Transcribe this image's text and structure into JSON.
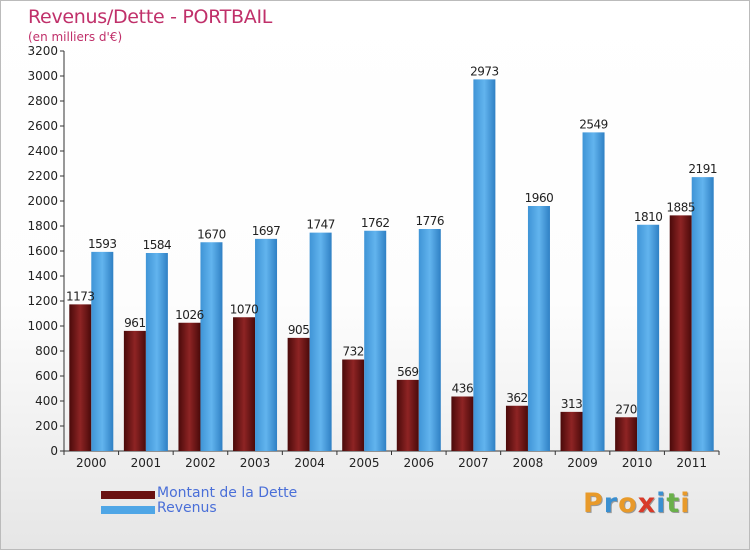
{
  "chart_data": {
    "type": "bar",
    "title": "Revenus/Dette - PORTBAIL",
    "subtitle": "(en milliers d'€)",
    "categories": [
      "2000",
      "2001",
      "2002",
      "2003",
      "2004",
      "2005",
      "2006",
      "2007",
      "2008",
      "2009",
      "2010",
      "2011"
    ],
    "series": [
      {
        "name": "Montant de la Dette",
        "color": "#7a1a1a",
        "values": [
          1173,
          961,
          1026,
          1070,
          905,
          732,
          569,
          436,
          362,
          313,
          270,
          1885
        ]
      },
      {
        "name": "Revenus",
        "color": "#4fa6e6",
        "values": [
          1593,
          1584,
          1670,
          1697,
          1747,
          1762,
          1776,
          2973,
          1960,
          2549,
          1810,
          2191
        ]
      }
    ],
    "data_labels": [
      [
        "1173",
        "961",
        "1026",
        "1070",
        "905",
        "732",
        "569",
        "436",
        "362",
        "313",
        "270",
        "1885"
      ],
      [
        "1593",
        "1584",
        "1670",
        "1697",
        "1747",
        "1762",
        "1776",
        "2973",
        "1960",
        "2549",
        "1810",
        "2191"
      ]
    ],
    "ylim": [
      0,
      3200
    ],
    "ytick_step": 200,
    "grid": false,
    "legend_position": "bottom-left"
  },
  "logo": {
    "text": "Proxiti",
    "letters": [
      {
        "ch": "P",
        "color": "#e89a2a"
      },
      {
        "ch": "r",
        "color": "#3a8fd0"
      },
      {
        "ch": "o",
        "color": "#e89a2a"
      },
      {
        "ch": "x",
        "color": "#d83a2a"
      },
      {
        "ch": "i",
        "color": "#3a8fd0"
      },
      {
        "ch": "t",
        "color": "#6ab04a"
      },
      {
        "ch": "i",
        "color": "#e89a2a"
      }
    ]
  }
}
